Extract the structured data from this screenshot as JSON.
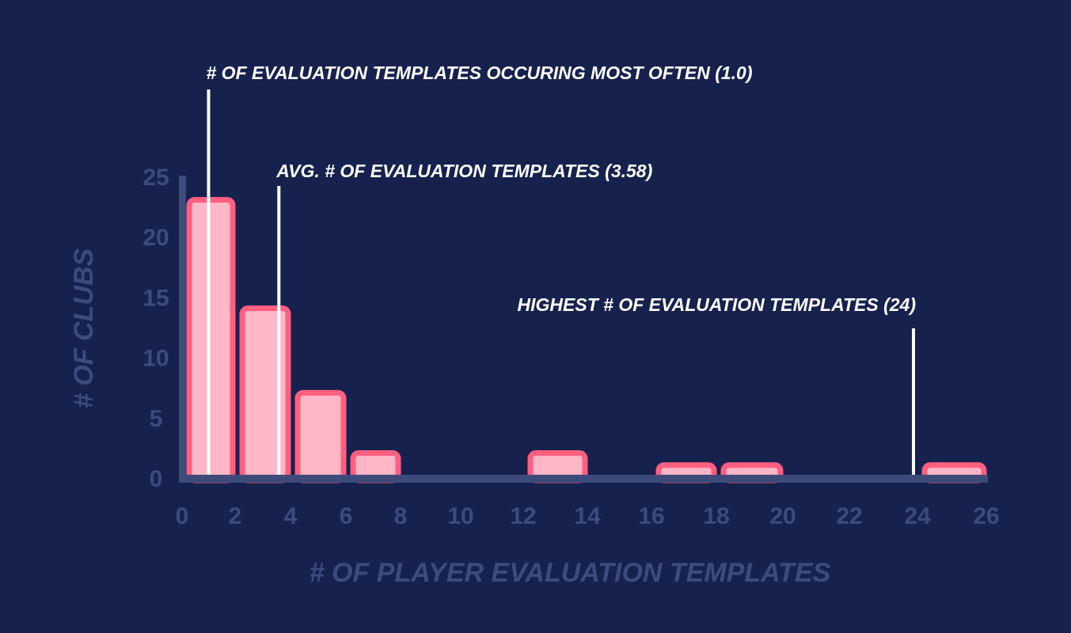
{
  "chart_data": {
    "type": "bar",
    "title": "",
    "xlabel": "# OF PLAYER EVALUATION TEMPLATES",
    "ylabel": "# OF CLUBS",
    "xlim": [
      0,
      26
    ],
    "ylim": [
      0,
      25
    ],
    "x_ticks": [
      "0",
      "2",
      "4",
      "6",
      "8",
      "10",
      "12",
      "14",
      "16",
      "18",
      "20",
      "22",
      "24",
      "26"
    ],
    "y_ticks": [
      "0",
      "5",
      "10",
      "15",
      "20",
      "25"
    ],
    "bins": [
      {
        "range": [
          0,
          2
        ],
        "value": 23
      },
      {
        "range": [
          2,
          4
        ],
        "value": 14
      },
      {
        "range": [
          4,
          6
        ],
        "value": 7
      },
      {
        "range": [
          6,
          8
        ],
        "value": 2
      },
      {
        "range": [
          12,
          14
        ],
        "value": 2
      },
      {
        "range": [
          16,
          18
        ],
        "value": 1
      },
      {
        "range": [
          18,
          20
        ],
        "value": 1
      },
      {
        "range": [
          24,
          26
        ],
        "value": 1
      }
    ],
    "annotations": [
      {
        "label": "# OF EVALUATION TEMPLATES OCCURING MOST OFTEN (1.0)",
        "x": 1.0
      },
      {
        "label": "AVG. # OF EVALUATION TEMPLATES (3.58)",
        "x": 3.58
      },
      {
        "label": "HIGHEST # OF EVALUATION TEMPLATES (24)",
        "x": 24
      }
    ],
    "grid": false,
    "colors": {
      "background": "#16224d",
      "axis": "#3d4a7a",
      "bar_fill": "#ffb6c6",
      "bar_stroke": "#ff5f80",
      "annotation": "#ffffff"
    }
  }
}
